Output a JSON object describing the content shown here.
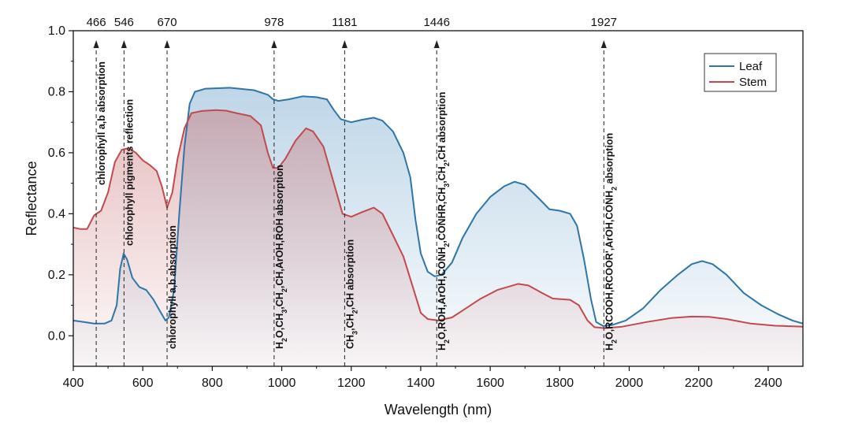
{
  "chart_data": {
    "type": "line",
    "xlabel": "Wavelength (nm)",
    "ylabel": "Reflectance",
    "xlim": [
      400,
      2500
    ],
    "ylim": [
      -0.1,
      1.0
    ],
    "xticks": [
      400,
      600,
      800,
      1000,
      1200,
      1400,
      1600,
      1800,
      2000,
      2200,
      2400
    ],
    "yticks": [
      0.0,
      0.2,
      0.4,
      0.6,
      0.8,
      1.0
    ],
    "ytick_labels": [
      "0.0",
      "0.2",
      "0.4",
      "0.6",
      "0.8",
      "1.0"
    ],
    "legend": {
      "position": "top-right"
    },
    "series": [
      {
        "name": "Leaf",
        "color": "#2e75a8",
        "fill": "#6fa4cc",
        "points": [
          [
            400,
            0.05
          ],
          [
            430,
            0.045
          ],
          [
            460,
            0.04
          ],
          [
            490,
            0.04
          ],
          [
            510,
            0.05
          ],
          [
            525,
            0.1
          ],
          [
            535,
            0.22
          ],
          [
            545,
            0.27
          ],
          [
            555,
            0.25
          ],
          [
            570,
            0.19
          ],
          [
            590,
            0.16
          ],
          [
            610,
            0.15
          ],
          [
            630,
            0.12
          ],
          [
            650,
            0.08
          ],
          [
            665,
            0.05
          ],
          [
            675,
            0.06
          ],
          [
            690,
            0.15
          ],
          [
            705,
            0.4
          ],
          [
            720,
            0.62
          ],
          [
            735,
            0.76
          ],
          [
            750,
            0.8
          ],
          [
            780,
            0.81
          ],
          [
            850,
            0.813
          ],
          [
            920,
            0.805
          ],
          [
            960,
            0.79
          ],
          [
            975,
            0.775
          ],
          [
            990,
            0.77
          ],
          [
            1020,
            0.775
          ],
          [
            1060,
            0.785
          ],
          [
            1100,
            0.782
          ],
          [
            1130,
            0.775
          ],
          [
            1150,
            0.74
          ],
          [
            1170,
            0.71
          ],
          [
            1200,
            0.7
          ],
          [
            1230,
            0.708
          ],
          [
            1265,
            0.715
          ],
          [
            1290,
            0.705
          ],
          [
            1320,
            0.67
          ],
          [
            1350,
            0.6
          ],
          [
            1370,
            0.52
          ],
          [
            1385,
            0.38
          ],
          [
            1400,
            0.27
          ],
          [
            1420,
            0.21
          ],
          [
            1440,
            0.195
          ],
          [
            1460,
            0.2
          ],
          [
            1490,
            0.24
          ],
          [
            1520,
            0.32
          ],
          [
            1560,
            0.4
          ],
          [
            1600,
            0.455
          ],
          [
            1640,
            0.49
          ],
          [
            1670,
            0.505
          ],
          [
            1700,
            0.495
          ],
          [
            1740,
            0.45
          ],
          [
            1770,
            0.415
          ],
          [
            1800,
            0.41
          ],
          [
            1830,
            0.4
          ],
          [
            1850,
            0.36
          ],
          [
            1870,
            0.25
          ],
          [
            1890,
            0.12
          ],
          [
            1905,
            0.045
          ],
          [
            1925,
            0.032
          ],
          [
            1950,
            0.035
          ],
          [
            1990,
            0.05
          ],
          [
            2040,
            0.09
          ],
          [
            2090,
            0.15
          ],
          [
            2140,
            0.2
          ],
          [
            2180,
            0.235
          ],
          [
            2210,
            0.245
          ],
          [
            2240,
            0.235
          ],
          [
            2280,
            0.2
          ],
          [
            2330,
            0.14
          ],
          [
            2380,
            0.1
          ],
          [
            2430,
            0.07
          ],
          [
            2470,
            0.05
          ],
          [
            2500,
            0.04
          ]
        ]
      },
      {
        "name": "Stem",
        "color": "#c24a4e",
        "fill": "#d98a8c",
        "points": [
          [
            400,
            0.355
          ],
          [
            420,
            0.35
          ],
          [
            440,
            0.35
          ],
          [
            460,
            0.395
          ],
          [
            480,
            0.41
          ],
          [
            500,
            0.47
          ],
          [
            520,
            0.57
          ],
          [
            540,
            0.61
          ],
          [
            560,
            0.615
          ],
          [
            580,
            0.6
          ],
          [
            600,
            0.575
          ],
          [
            620,
            0.56
          ],
          [
            640,
            0.54
          ],
          [
            655,
            0.49
          ],
          [
            670,
            0.42
          ],
          [
            685,
            0.47
          ],
          [
            700,
            0.58
          ],
          [
            720,
            0.68
          ],
          [
            740,
            0.73
          ],
          [
            770,
            0.737
          ],
          [
            810,
            0.74
          ],
          [
            840,
            0.738
          ],
          [
            870,
            0.73
          ],
          [
            910,
            0.72
          ],
          [
            940,
            0.69
          ],
          [
            960,
            0.6
          ],
          [
            975,
            0.55
          ],
          [
            990,
            0.55
          ],
          [
            1010,
            0.58
          ],
          [
            1040,
            0.64
          ],
          [
            1070,
            0.68
          ],
          [
            1090,
            0.67
          ],
          [
            1120,
            0.62
          ],
          [
            1150,
            0.5
          ],
          [
            1175,
            0.4
          ],
          [
            1200,
            0.39
          ],
          [
            1230,
            0.405
          ],
          [
            1265,
            0.42
          ],
          [
            1290,
            0.4
          ],
          [
            1320,
            0.33
          ],
          [
            1350,
            0.26
          ],
          [
            1380,
            0.15
          ],
          [
            1400,
            0.075
          ],
          [
            1420,
            0.055
          ],
          [
            1450,
            0.05
          ],
          [
            1490,
            0.06
          ],
          [
            1530,
            0.09
          ],
          [
            1570,
            0.12
          ],
          [
            1620,
            0.15
          ],
          [
            1680,
            0.17
          ],
          [
            1710,
            0.165
          ],
          [
            1750,
            0.14
          ],
          [
            1780,
            0.122
          ],
          [
            1830,
            0.118
          ],
          [
            1855,
            0.1
          ],
          [
            1880,
            0.05
          ],
          [
            1900,
            0.028
          ],
          [
            1930,
            0.025
          ],
          [
            1980,
            0.03
          ],
          [
            2050,
            0.045
          ],
          [
            2120,
            0.058
          ],
          [
            2180,
            0.063
          ],
          [
            2230,
            0.062
          ],
          [
            2280,
            0.055
          ],
          [
            2350,
            0.04
          ],
          [
            2420,
            0.033
          ],
          [
            2500,
            0.03
          ]
        ]
      }
    ],
    "markers": [
      {
        "x": 466,
        "label": "466",
        "annotation": [
          {
            "t": "chlorophyll a,b absorption"
          }
        ],
        "anno_pos": "upper"
      },
      {
        "x": 546,
        "label": "546",
        "annotation": [
          {
            "t": "chlorophyll pigments reflection"
          }
        ],
        "anno_pos": "mid"
      },
      {
        "x": 670,
        "label": "670",
        "annotation": [
          {
            "t": "chlorophyll a,b absorption"
          }
        ],
        "anno_pos": "lower"
      },
      {
        "x": 978,
        "label": "978",
        "annotation": [
          {
            "t": "H"
          },
          {
            "t": "2",
            "sub": true
          },
          {
            "t": "O,CH"
          },
          {
            "t": "3",
            "sub": true
          },
          {
            "t": ",CH"
          },
          {
            "t": "2",
            "sub": true
          },
          {
            "t": ",CH,ArOH,ROH absorption"
          }
        ],
        "anno_pos": "lower"
      },
      {
        "x": 1181,
        "label": "1181",
        "annotation": [
          {
            "t": "CH"
          },
          {
            "t": "3",
            "sub": true
          },
          {
            "t": ",CH"
          },
          {
            "t": "2",
            "sub": true
          },
          {
            "t": ",CH absorption"
          }
        ],
        "anno_pos": "lower"
      },
      {
        "x": 1446,
        "label": "1446",
        "annotation": [
          {
            "t": "H"
          },
          {
            "t": "2",
            "sub": true
          },
          {
            "t": "O,ROH,ArOH,CONH"
          },
          {
            "t": "2",
            "sub": true
          },
          {
            "t": ",CONHR,CH"
          },
          {
            "t": "3",
            "sub": true
          },
          {
            "t": ",CH"
          },
          {
            "t": "2",
            "sub": true
          },
          {
            "t": ",CH absorption"
          }
        ],
        "anno_pos": "full"
      },
      {
        "x": 1927,
        "label": "1927",
        "annotation": [
          {
            "t": "H"
          },
          {
            "t": "2",
            "sub": true
          },
          {
            "t": "O,RCOOH,RCOOR',ArOH,CONH"
          },
          {
            "t": "2",
            "sub": true
          },
          {
            "t": " absorption"
          }
        ],
        "anno_pos": "full"
      }
    ]
  }
}
